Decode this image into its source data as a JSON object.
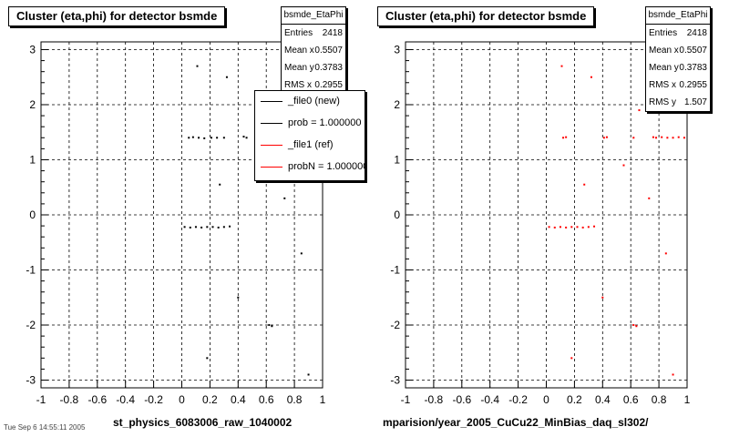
{
  "pads": [
    {
      "title": "Cluster (eta,phi) for detector bsmde",
      "xtitle": "st_physics_6083006_raw_1040002",
      "stats": {
        "name": "bsmde_EtaPhi",
        "rows": [
          {
            "label": "Entries",
            "value": "2418"
          },
          {
            "label": "Mean x",
            "value": "0.5507"
          },
          {
            "label": "Mean y",
            "value": "0.3783"
          },
          {
            "label": "RMS x",
            "value": "0.2955"
          }
        ]
      },
      "legend": [
        {
          "label": "_file0 (new)",
          "color": "#000000"
        },
        {
          "label": "prob = 1.000000",
          "color": "#000000"
        },
        {
          "label": "_file1 (ref)",
          "color": "#ff0000"
        },
        {
          "label": "probN = 1.000000",
          "color": "#ff0000"
        }
      ]
    },
    {
      "title": "Cluster (eta,phi) for detector bsmde",
      "xtitle": "mparision/year_2005_CuCu22_MinBias_daq_sl302/",
      "stats": {
        "name": "bsmde_EtaPhi",
        "rows": [
          {
            "label": "Entries",
            "value": "2418"
          },
          {
            "label": "Mean x",
            "value": "0.5507"
          },
          {
            "label": "Mean y",
            "value": "0.3783"
          },
          {
            "label": "RMS x",
            "value": "0.2955"
          },
          {
            "label": "RMS y",
            "value": "1.507"
          }
        ]
      }
    }
  ],
  "chart_data": [
    {
      "type": "scatter",
      "title": "Cluster (eta,phi) for detector bsmde",
      "xlabel": "st_physics_6083006_raw_1040002",
      "ylabel": "",
      "xlim": [
        -1,
        1
      ],
      "ylim": [
        -3.14,
        3.14
      ],
      "x_ticks": [
        "-1",
        "-0.8",
        "-0.6",
        "-0.4",
        "-0.2",
        "0",
        "0.2",
        "0.4",
        "0.6",
        "0.8",
        "1"
      ],
      "y_ticks": [
        "-3",
        "-2",
        "-1",
        "0",
        "1",
        "2",
        "3"
      ],
      "grid": true,
      "legend_position": "top-right",
      "series": [
        {
          "name": "_file0 (new)",
          "color": "#000000",
          "points": [
            [
              0.05,
              1.4
            ],
            [
              0.08,
              1.41
            ],
            [
              0.12,
              1.4
            ],
            [
              0.16,
              1.39
            ],
            [
              0.21,
              1.4
            ],
            [
              0.25,
              1.4
            ],
            [
              0.3,
              1.4
            ],
            [
              0.44,
              1.42
            ],
            [
              0.46,
              1.4
            ],
            [
              0.02,
              -0.22
            ],
            [
              0.06,
              -0.23
            ],
            [
              0.1,
              -0.22
            ],
            [
              0.14,
              -0.23
            ],
            [
              0.18,
              -0.22
            ],
            [
              0.22,
              -0.22
            ],
            [
              0.26,
              -0.23
            ],
            [
              0.3,
              -0.22
            ],
            [
              0.34,
              -0.21
            ],
            [
              0.62,
              -2.0
            ],
            [
              0.64,
              -2.02
            ],
            [
              0.11,
              2.7
            ],
            [
              0.32,
              2.5
            ],
            [
              0.55,
              0.9
            ],
            [
              0.73,
              0.3
            ],
            [
              0.85,
              -0.7
            ],
            [
              0.4,
              -1.5
            ],
            [
              0.18,
              -2.6
            ],
            [
              0.9,
              -2.9
            ],
            [
              0.66,
              1.9
            ],
            [
              0.27,
              0.55
            ]
          ]
        },
        {
          "name": "_file1 (ref)",
          "color": "#ff0000",
          "points": []
        }
      ]
    },
    {
      "type": "scatter",
      "title": "Cluster (eta,phi) for detector bsmde",
      "xlabel": "mparision/year_2005_CuCu22_MinBias_daq_sl302/",
      "ylabel": "",
      "xlim": [
        -1,
        1
      ],
      "ylim": [
        -3.14,
        3.14
      ],
      "x_ticks": [
        "-1",
        "-0.8",
        "-0.6",
        "-0.4",
        "-0.2",
        "0",
        "0.2",
        "0.4",
        "0.6",
        "0.8",
        "1"
      ],
      "y_ticks": [
        "-3",
        "-2",
        "-1",
        "0",
        "1",
        "2",
        "3"
      ],
      "grid": true,
      "series": [
        {
          "name": "",
          "color": "#ff0000",
          "points": [
            [
              0.12,
              1.4
            ],
            [
              0.14,
              1.41
            ],
            [
              0.41,
              1.4
            ],
            [
              0.43,
              1.41
            ],
            [
              0.62,
              1.4
            ],
            [
              0.76,
              1.41
            ],
            [
              0.78,
              1.4
            ],
            [
              0.82,
              1.41
            ],
            [
              0.86,
              1.4
            ],
            [
              0.9,
              1.4
            ],
            [
              0.94,
              1.41
            ],
            [
              0.98,
              1.4
            ],
            [
              0.02,
              -0.22
            ],
            [
              0.06,
              -0.23
            ],
            [
              0.1,
              -0.22
            ],
            [
              0.14,
              -0.23
            ],
            [
              0.18,
              -0.22
            ],
            [
              0.22,
              -0.22
            ],
            [
              0.26,
              -0.23
            ],
            [
              0.3,
              -0.22
            ],
            [
              0.34,
              -0.21
            ],
            [
              0.62,
              -2.0
            ],
            [
              0.64,
              -2.02
            ],
            [
              0.11,
              2.7
            ],
            [
              0.32,
              2.5
            ],
            [
              0.55,
              0.9
            ],
            [
              0.73,
              0.3
            ],
            [
              0.85,
              -0.7
            ],
            [
              0.4,
              -1.5
            ],
            [
              0.18,
              -2.6
            ],
            [
              0.9,
              -2.9
            ],
            [
              0.66,
              1.9
            ],
            [
              0.27,
              0.55
            ]
          ]
        }
      ]
    }
  ],
  "footer": "Tue Sep 6 14:55:11 2005"
}
